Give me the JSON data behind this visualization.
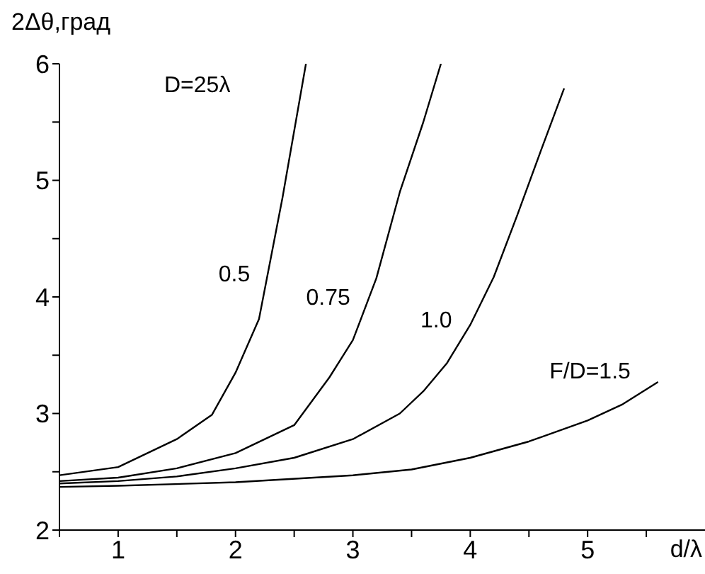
{
  "chart_data": {
    "type": "line",
    "xlabel": "d/λ",
    "ylabel": "2Δθ,град",
    "xlim": [
      0.5,
      6
    ],
    "ylim": [
      2,
      6
    ],
    "xticks": [
      {
        "value": 0.5,
        "label": null
      },
      1,
      {
        "value": 1.5,
        "label": null
      },
      2,
      {
        "value": 2.5,
        "label": null
      },
      3,
      {
        "value": 3.5,
        "label": null
      },
      4,
      {
        "value": 4.5,
        "label": null
      },
      5,
      {
        "value": 5.5,
        "label": null
      }
    ],
    "yticks": [
      2,
      {
        "value": 2.5,
        "label": null
      },
      3,
      {
        "value": 3.5,
        "label": null
      },
      4,
      {
        "value": 4.5,
        "label": null
      },
      5,
      {
        "value": 5.5,
        "label": null
      },
      6
    ],
    "series": [
      {
        "name": "0.5",
        "color": "#000000",
        "x": [
          0.5,
          1.0,
          1.5,
          1.8,
          2.0,
          2.2,
          2.4,
          2.6
        ],
        "values": [
          2.47,
          2.54,
          2.78,
          2.99,
          3.35,
          3.81,
          4.85,
          6.0
        ]
      },
      {
        "name": "0.75",
        "color": "#000000",
        "x": [
          0.5,
          1.0,
          1.5,
          2.0,
          2.5,
          2.8,
          3.0,
          3.2,
          3.4,
          3.6,
          3.75
        ],
        "values": [
          2.42,
          2.45,
          2.53,
          2.66,
          2.9,
          3.31,
          3.63,
          4.16,
          4.9,
          5.5,
          6.0
        ]
      },
      {
        "name": "1.0",
        "color": "#000000",
        "x": [
          0.5,
          1.0,
          1.5,
          2.0,
          2.5,
          3.0,
          3.4,
          3.6,
          3.8,
          4.0,
          4.2,
          4.4,
          4.6,
          4.8
        ],
        "values": [
          2.4,
          2.42,
          2.46,
          2.53,
          2.62,
          2.78,
          3.0,
          3.19,
          3.43,
          3.76,
          4.17,
          4.7,
          5.25,
          5.79
        ]
      },
      {
        "name": "F/D=1.5",
        "color": "#000000",
        "x": [
          0.5,
          1.0,
          2.0,
          3.0,
          3.5,
          4.0,
          4.5,
          5.0,
          5.3,
          5.6
        ],
        "values": [
          2.37,
          2.38,
          2.41,
          2.47,
          2.52,
          2.62,
          2.76,
          2.94,
          3.08,
          3.27
        ]
      }
    ],
    "annotations": [
      "D=25λ"
    ]
  }
}
